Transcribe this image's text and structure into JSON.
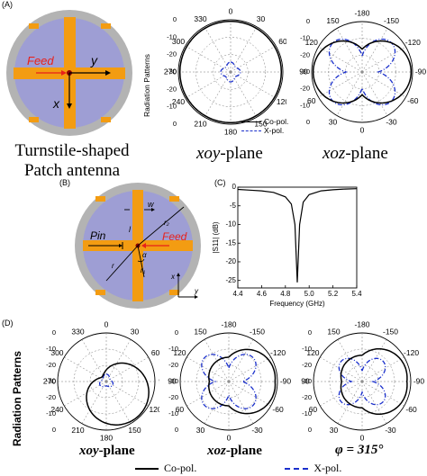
{
  "panel_a": {
    "tag": "(A)",
    "antenna": {
      "feed_label": "Feed",
      "x_label": "x",
      "y_label": "y"
    },
    "caption_line1": "Turnstile-shaped",
    "caption_line2": "Patch antenna",
    "ylabel": "Radiation Patterns",
    "xoy": {
      "angles": [
        "0",
        "30",
        "60",
        "90",
        "120",
        "150",
        "180",
        "210",
        "240",
        "270",
        "300",
        "330"
      ],
      "radial_ticks": [
        "0",
        "-10",
        "-20",
        "-30",
        "-20",
        "-10",
        "0"
      ],
      "plane_var": "xoy",
      "plane_word": "-plane"
    },
    "xoz": {
      "angles": [
        "-180",
        "-150",
        "-120",
        "-90",
        "-60",
        "-30",
        "0",
        "30",
        "60",
        "90",
        "120",
        "150"
      ],
      "radial_ticks": [
        "0",
        "-10",
        "-20",
        "-30",
        "-20",
        "-10",
        "0"
      ],
      "plane_var": "xoz",
      "plane_word": "-plane"
    },
    "legend": {
      "co": "Co-pol.",
      "x": "X-pol."
    }
  },
  "panel_b": {
    "tag": "(B)",
    "labels": {
      "w": "w",
      "l": "l",
      "r2": "r₂",
      "pin": "Pin",
      "feed": "Feed",
      "r1": "r₁",
      "r": "r",
      "alpha": "α",
      "x": "x",
      "y": "y"
    }
  },
  "panel_c": {
    "tag": "(C)",
    "ylabel": "|S11| (dB)",
    "xlabel": "Frequency (GHz)",
    "x_ticks": [
      "4.4",
      "4.6",
      "4.8",
      "5.0",
      "5.2",
      "5.4"
    ],
    "y_ticks": [
      "0",
      "-5",
      "-10",
      "-15",
      "-20",
      "-25"
    ]
  },
  "panel_d": {
    "tag": "(D)",
    "ylabel": "Radiation Patterns",
    "radial_ticks": [
      "0",
      "-10",
      "-20",
      "-30",
      "-20",
      "-10",
      "0"
    ],
    "p1": {
      "angles": [
        "0",
        "30",
        "60",
        "90",
        "120",
        "150",
        "180",
        "210",
        "240",
        "270",
        "300",
        "330"
      ],
      "plane_var": "xoy",
      "plane_word": "-plane"
    },
    "p2": {
      "angles": [
        "-180",
        "-150",
        "-120",
        "-90",
        "-60",
        "-30",
        "0",
        "30",
        "60",
        "90",
        "120",
        "150"
      ],
      "plane_var": "xoz",
      "plane_word": "-plane"
    },
    "p3": {
      "angles": [
        "-180",
        "-150",
        "-120",
        "-90",
        "-60",
        "-30",
        "0",
        "30",
        "60",
        "90",
        "120",
        "150"
      ],
      "caption": "φ = 315°"
    },
    "legend": {
      "co": "Co-pol.",
      "x": "X-pol."
    }
  },
  "colors": {
    "copper": "#f39c12",
    "substrate": "#9e9ed4",
    "ground": "#b3b3b3",
    "copol": "#000000",
    "xpol": "#1a2fcc",
    "feed": "#e8201a"
  },
  "chart_data": [
    {
      "type": "line",
      "title": "",
      "xlabel": "Frequency (GHz)",
      "ylabel": "|S11| (dB)",
      "xlim": [
        4.4,
        5.4
      ],
      "ylim": [
        -27,
        0
      ],
      "series": [
        {
          "x": [
            4.4,
            4.5,
            4.6,
            4.7,
            4.8,
            4.85,
            4.88,
            4.9,
            4.92,
            4.95,
            5.0,
            5.1,
            5.2,
            5.3,
            5.4
          ],
          "values": [
            -0.6,
            -0.8,
            -1.0,
            -1.4,
            -2.6,
            -4.5,
            -10,
            -25.5,
            -10,
            -4.0,
            -2.0,
            -1.0,
            -0.7,
            -0.5,
            -0.4
          ]
        }
      ]
    }
  ]
}
